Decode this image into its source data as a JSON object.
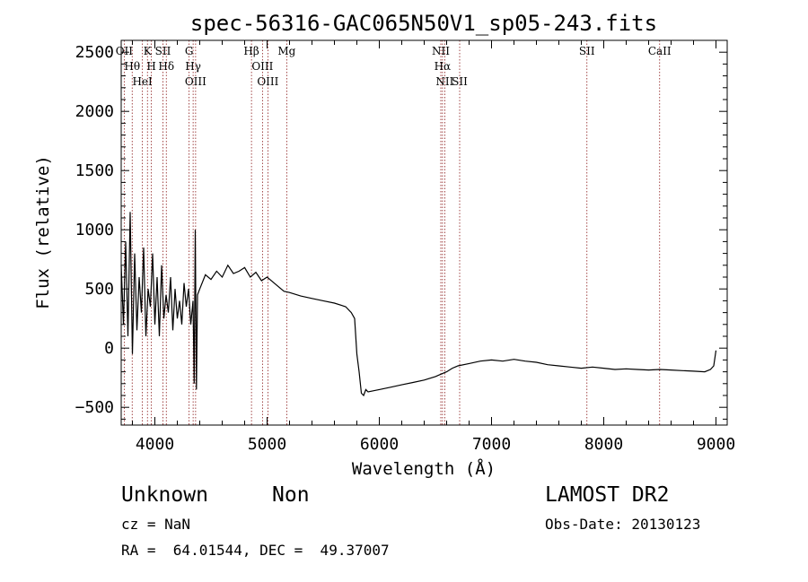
{
  "chart_data": {
    "type": "line",
    "title": "spec-56316-GAC065N50V1_sp05-243.fits",
    "xlabel": "Wavelength (Å)",
    "ylabel": "Flux (relative)",
    "xlim": [
      3700,
      9100
    ],
    "ylim": [
      -650,
      2600
    ],
    "xticks": [
      4000,
      5000,
      6000,
      7000,
      8000,
      9000
    ],
    "xtick_labels": [
      "4000",
      "5000",
      "6000",
      "7000",
      "8000",
      "9000"
    ],
    "yticks": [
      -500,
      0,
      500,
      1000,
      1500,
      2000,
      2500
    ],
    "ytick_labels": [
      "−500",
      "0",
      "500",
      "1000",
      "1500",
      "2000",
      "2500"
    ],
    "grid": false,
    "line_color": "#000000",
    "marker_color": "#8b1a1a",
    "series": [
      {
        "x": [
          3700,
          3720,
          3740,
          3760,
          3780,
          3800,
          3820,
          3840,
          3860,
          3880,
          3900,
          3920,
          3940,
          3960,
          3980,
          4000,
          4020,
          4040,
          4060,
          4080,
          4100,
          4120,
          4140,
          4160,
          4180,
          4200,
          4220,
          4240,
          4260,
          4280,
          4300,
          4320,
          4340,
          4350,
          4360,
          4370,
          4380,
          4400,
          4450,
          4500,
          4550,
          4600,
          4650,
          4700,
          4750,
          4800,
          4850,
          4900,
          4950,
          5000,
          5050,
          5100,
          5150,
          5200,
          5300,
          5400,
          5500,
          5600,
          5700,
          5750,
          5780,
          5800,
          5820,
          5840,
          5860,
          5880,
          5900,
          5950,
          6000,
          6100,
          6200,
          6300,
          6400,
          6500,
          6550,
          6600,
          6650,
          6700,
          6800,
          6900,
          7000,
          7100,
          7200,
          7300,
          7400,
          7500,
          7600,
          7700,
          7800,
          7900,
          8000,
          8100,
          8200,
          8300,
          8400,
          8500,
          8600,
          8700,
          8800,
          8900,
          8950,
          8980,
          9000
        ],
        "y": [
          700,
          200,
          900,
          100,
          1150,
          -50,
          800,
          150,
          600,
          300,
          850,
          100,
          500,
          350,
          800,
          200,
          600,
          100,
          700,
          250,
          450,
          300,
          600,
          150,
          500,
          250,
          400,
          200,
          550,
          350,
          500,
          200,
          400,
          -300,
          1000,
          -350,
          450,
          500,
          620,
          580,
          650,
          600,
          700,
          630,
          650,
          680,
          600,
          640,
          570,
          600,
          560,
          520,
          480,
          470,
          440,
          420,
          400,
          380,
          350,
          300,
          250,
          -50,
          -200,
          -380,
          -400,
          -350,
          -370,
          -360,
          -350,
          -330,
          -310,
          -290,
          -270,
          -240,
          -220,
          -200,
          -170,
          -150,
          -130,
          -110,
          -100,
          -110,
          -95,
          -110,
          -120,
          -140,
          -150,
          -160,
          -170,
          -160,
          -170,
          -180,
          -175,
          -180,
          -185,
          -180,
          -185,
          -190,
          -195,
          -200,
          -180,
          -150,
          -20
        ]
      }
    ],
    "lines": [
      {
        "name": "Hθ",
        "x": 3798
      },
      {
        "name": "OII",
        "x": 3727
      },
      {
        "name": "HeI",
        "x": 3889
      },
      {
        "name": "K",
        "x": 3934
      },
      {
        "name": "H",
        "x": 3969
      },
      {
        "name": "SII",
        "x": 4072
      },
      {
        "name": "Hδ",
        "x": 4102
      },
      {
        "name": "Hγ",
        "x": 4341
      },
      {
        "name": "G",
        "x": 4305
      },
      {
        "name": "OIII",
        "x": 4363
      },
      {
        "name": "Hβ",
        "x": 4861
      },
      {
        "name": "OIII",
        "x": 4959
      },
      {
        "name": "OIII",
        "x": 5007
      },
      {
        "name": "Mg",
        "x": 5175
      },
      {
        "name": "NII",
        "x": 6548
      },
      {
        "name": "Hα",
        "x": 6563
      },
      {
        "name": "NII",
        "x": 6583
      },
      {
        "name": "SII",
        "x": 6716
      },
      {
        "name": "SII",
        "x": 7850
      },
      {
        "name": "CaII",
        "x": 8498
      }
    ]
  },
  "info": {
    "class": "Unknown",
    "subclass": "Non",
    "survey": "LAMOST DR2",
    "cz": "cz = NaN",
    "obs_date": "Obs-Date: 20130123",
    "coords": "RA =  64.01544, DEC =  49.37007"
  }
}
